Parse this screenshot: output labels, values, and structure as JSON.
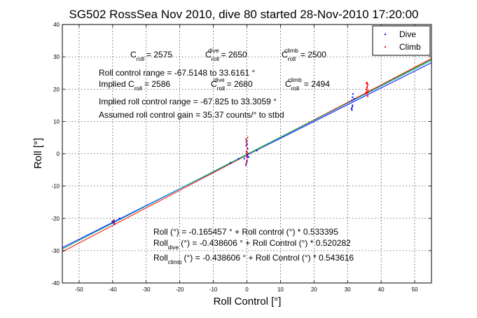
{
  "chart_data": {
    "type": "scatter",
    "title": "SG502 RossSea Nov 2010, dive 80 started 28-Nov-2010 17:20:00",
    "xlabel": "Roll Control [°]",
    "ylabel": "Roll [°]",
    "xlim": [
      -55,
      55
    ],
    "ylim": [
      -40,
      40
    ],
    "xticks": [
      -50,
      -40,
      -30,
      -20,
      -10,
      0,
      10,
      20,
      30,
      40,
      50
    ],
    "yticks": [
      -40,
      -30,
      -20,
      -10,
      0,
      10,
      20,
      30,
      40
    ],
    "grid": true,
    "legend_position": "top-right",
    "series": [
      {
        "name": "Dive",
        "color": "#0000ff",
        "points": [
          [
            -39.8,
            -21.2
          ],
          [
            -39.6,
            -20.6
          ],
          [
            -39.5,
            -21.8
          ],
          [
            -40.1,
            -21.0
          ],
          [
            -38.0,
            -20.0
          ],
          [
            -4.9,
            -2.8
          ],
          [
            -2.5,
            -1.6
          ],
          [
            -0.8,
            -1.5
          ],
          [
            -0.3,
            -3.5
          ],
          [
            0.0,
            -2.5
          ],
          [
            0.0,
            -2.0
          ],
          [
            0.0,
            -1.0
          ],
          [
            0.1,
            -0.5
          ],
          [
            0.0,
            0.5
          ],
          [
            0.2,
            1.5
          ],
          [
            -0.2,
            2.5
          ],
          [
            0.1,
            3.0
          ],
          [
            0.0,
            4.0
          ],
          [
            0.3,
            0.0
          ],
          [
            0.5,
            -1.0
          ],
          [
            3.0,
            1.0
          ],
          [
            31.2,
            14.0
          ],
          [
            31.3,
            13.5
          ],
          [
            31.4,
            14.5
          ],
          [
            31.5,
            15.0
          ],
          [
            31.3,
            16.5
          ],
          [
            31.5,
            17.5
          ],
          [
            31.6,
            18.5
          ],
          [
            32.0,
            17.0
          ]
        ]
      },
      {
        "name": "Climb",
        "color": "#ff0000",
        "points": [
          [
            -39.5,
            -21.5
          ],
          [
            -39.7,
            -20.9
          ],
          [
            -0.2,
            -3.0
          ],
          [
            0.0,
            -2.2
          ],
          [
            0.2,
            -1.2
          ],
          [
            0.0,
            -0.2
          ],
          [
            -0.1,
            0.8
          ],
          [
            0.1,
            1.8
          ],
          [
            0.0,
            2.8
          ],
          [
            -0.2,
            3.5
          ],
          [
            0.2,
            5.0
          ],
          [
            -0.3,
            4.5
          ],
          [
            0.0,
            0.3
          ],
          [
            35.5,
            18.5
          ],
          [
            35.6,
            19.2
          ],
          [
            35.7,
            19.8
          ],
          [
            35.8,
            20.5
          ],
          [
            35.9,
            21.0
          ],
          [
            36.0,
            21.5
          ],
          [
            35.7,
            20.0
          ],
          [
            35.9,
            18.8
          ],
          [
            36.1,
            19.5
          ],
          [
            35.8,
            22.0
          ],
          [
            36.0,
            17.8
          ],
          [
            35.6,
            21.8
          ]
        ]
      }
    ],
    "fit_lines": [
      {
        "intercept": -0.165457,
        "slope": 0.533395,
        "color": "#00aa00"
      },
      {
        "intercept": -0.438606,
        "slope": 0.520282,
        "color": "#0000ff"
      },
      {
        "intercept": -0.438606,
        "slope": 0.543616,
        "color": "#ff0000"
      },
      {
        "intercept": -0.305,
        "slope": 0.53,
        "color": "#00bbbb"
      }
    ],
    "legend": [
      "Dive",
      "Climb"
    ],
    "annotations": {
      "centers": [
        {
          "main": "C",
          "sub": "roll",
          "sup": "",
          "value": "= 2575"
        },
        {
          "main": "C",
          "sub": "roll",
          "sup": "dive",
          "value": "= 2650"
        },
        {
          "main": "C",
          "sub": "roll",
          "sup": "climb",
          "value": "= 2500"
        }
      ],
      "range_line": "Roll control range = -67.5148 to 33.6161 °",
      "implied": [
        {
          "main": "Implied C",
          "sub": "roll",
          "sup": "",
          "value": "= 2586"
        },
        {
          "main": "C",
          "sub": "roll",
          "sup": "dive",
          "value": "= 2680"
        },
        {
          "main": "C",
          "sub": "roll",
          "sup": "climb",
          "value": "= 2494"
        }
      ],
      "implied_range": "Implied roll control range = -67.825 to 33.3059 °",
      "gain": "Assumed roll control gain = 35.37 counts/° to stbd",
      "eq1": "Roll (°) = -0.165457 ° + Roll control (°) * 0.533395",
      "eq2": {
        "main": "Roll",
        "sub": "dive",
        "rest": "(°) = -0.438606 ° + Roll Control (°) * 0.520282"
      },
      "eq3": {
        "main": "Roll",
        "sub": "climb",
        "rest": "(°) = -0.438606 ° + Roll Control (°) * 0.543616"
      }
    }
  }
}
